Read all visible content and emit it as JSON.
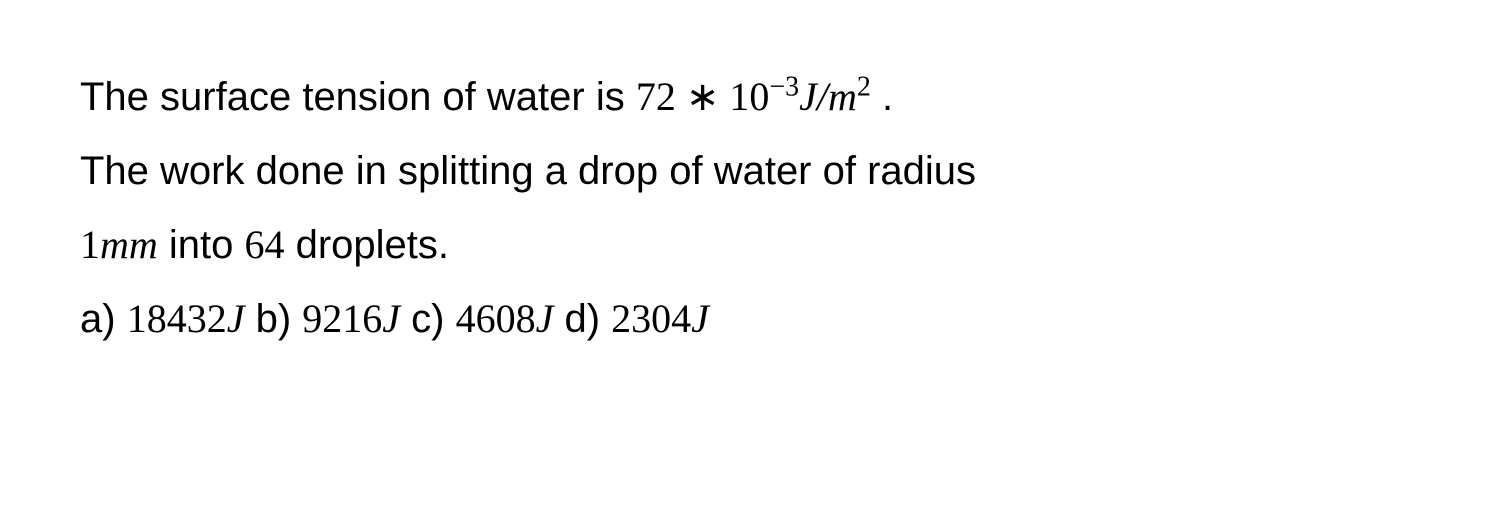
{
  "question": {
    "line1_pre": "The surface tension of water is ",
    "surface_tension_coeff": "72",
    "times_sym": " ∗ ",
    "base": "10",
    "exponent": "−3",
    "unit_J": "J",
    "unit_slash": "/",
    "unit_m": "m",
    "unit_m_exp": "2",
    "line1_post": " .",
    "line2": "The work done in splitting a drop of water of radius",
    "radius_val": "1",
    "radius_unit": "mm",
    "line3_mid": " into ",
    "droplet_count": "64",
    "line3_post": " droplets."
  },
  "options": {
    "a_label": "a) ",
    "a_val": "18432",
    "a_unit": "J",
    "b_label": " b) ",
    "b_val": "9216",
    "b_unit": "J",
    "c_label": " c) ",
    "c_val": "4608",
    "c_unit": "J",
    "d_label": " d) ",
    "d_val": "2304",
    "d_unit": "J"
  },
  "styles": {
    "text_color": "#000000",
    "bg_color": "#ffffff",
    "body_fontsize": 40
  }
}
